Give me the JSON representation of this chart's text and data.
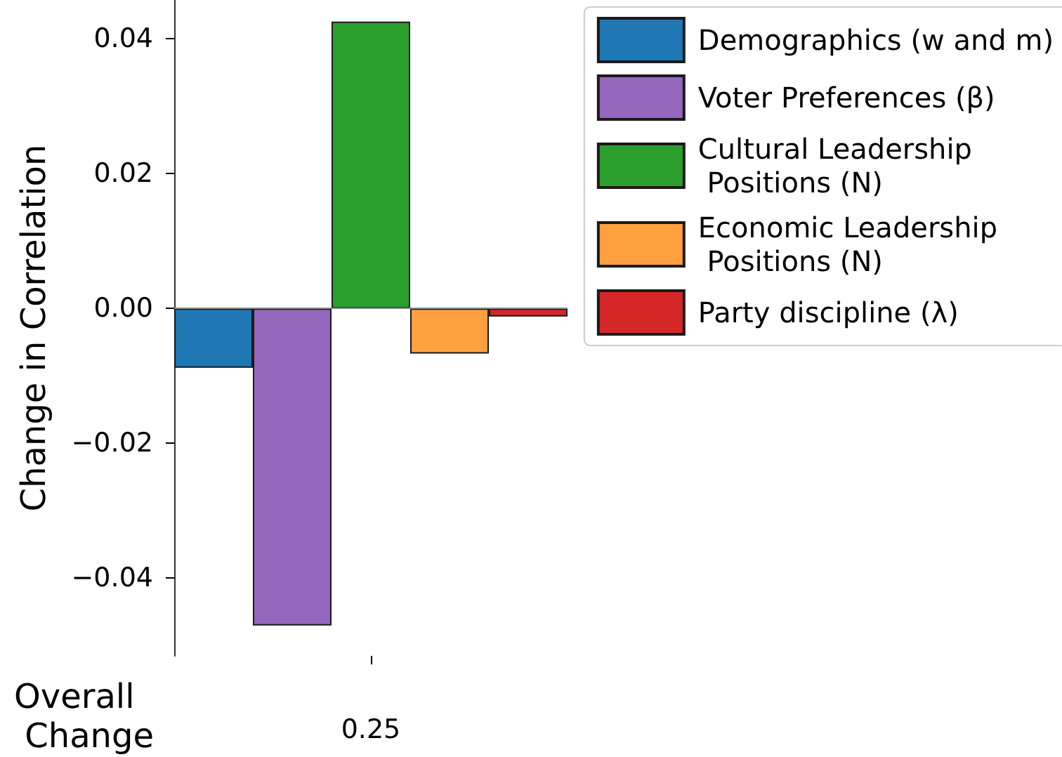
{
  "chart_data": {
    "type": "bar",
    "categories": [
      null,
      null,
      "0.25",
      null,
      null
    ],
    "series": [
      {
        "name": "Demographics (w and m)",
        "color": "#1f77b4",
        "values": [
          -0.0088,
          null,
          null,
          null,
          null
        ]
      },
      {
        "name": "Voter Preferences (β)",
        "color": "#9467bd",
        "values": [
          null,
          -0.047,
          null,
          null,
          null
        ]
      },
      {
        "name": "Cultural Leadership\n Positions (N)",
        "color": "#2ca02c",
        "values": [
          null,
          null,
          0.0425,
          null,
          null
        ]
      },
      {
        "name": "Economic Leadership\n Positions (N)",
        "color": "#ffa040",
        "values": [
          null,
          null,
          null,
          -0.0067,
          null
        ]
      },
      {
        "name": "Party discipline (λ)",
        "color": "#d62728",
        "values": [
          null,
          null,
          null,
          null,
          -0.0012
        ]
      }
    ],
    "ylabel": "Change in Correlation",
    "xlabel": "Overall\n Change",
    "ylim": [
      -0.0515,
      0.0457
    ],
    "yticks": [
      {
        "value": -0.04,
        "label": "−0.04"
      },
      {
        "value": -0.02,
        "label": "−0.02"
      },
      {
        "value": 0,
        "label": "0.00"
      },
      {
        "value": 0.02,
        "label": "0.02"
      },
      {
        "value": 0.04,
        "label": "0.04"
      }
    ],
    "ref_lines": [
      {
        "axis": "y",
        "value": 0,
        "color": "#888888"
      }
    ],
    "legend": "top right",
    "grid": false
  }
}
